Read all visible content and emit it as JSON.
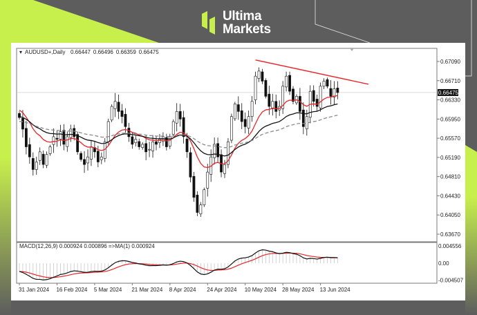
{
  "brand": {
    "line1": "Ultima",
    "line2": "Markets",
    "accent": "#c8f04c"
  },
  "chart_data": {
    "type": "candlestick",
    "symbol_header": "AUDUSD+,Daily",
    "ohlc_header": [
      "0.66447",
      "0.66496",
      "0.66359",
      "0.66475"
    ],
    "current_price_label": "0.66475",
    "y_ticks": [
      "0.67090",
      "0.66710",
      "0.66330",
      "0.65950",
      "0.65570",
      "0.65190",
      "0.64810",
      "0.64430",
      "0.64050",
      "0.63670"
    ],
    "ylim": [
      0.6345,
      0.674
    ],
    "x_tick_labels": [
      {
        "bar": 0,
        "label": "31 Jan 2024"
      },
      {
        "bar": 11,
        "label": "16 Feb 2024"
      },
      {
        "bar": 22,
        "label": "5 Mar 2024"
      },
      {
        "bar": 33,
        "label": "21 Mar 2024"
      },
      {
        "bar": 44,
        "label": "8 Apr 2024"
      },
      {
        "bar": 55,
        "label": "24 Apr 2024"
      },
      {
        "bar": 66,
        "label": "10 May 2024"
      },
      {
        "bar": 77,
        "label": "28 May 2024"
      },
      {
        "bar": 88,
        "label": "13 Jun 2024"
      }
    ],
    "closes": [
      0.6598,
      0.6575,
      0.654,
      0.652,
      0.6495,
      0.651,
      0.653,
      0.6505,
      0.6525,
      0.654,
      0.656,
      0.6555,
      0.657,
      0.6545,
      0.656,
      0.6575,
      0.656,
      0.653,
      0.6515,
      0.6505,
      0.652,
      0.654,
      0.653,
      0.651,
      0.652,
      0.655,
      0.659,
      0.662,
      0.663,
      0.661,
      0.66,
      0.658,
      0.656,
      0.6545,
      0.6555,
      0.654,
      0.6545,
      0.653,
      0.6535,
      0.655,
      0.6545,
      0.6555,
      0.656,
      0.654,
      0.656,
      0.659,
      0.661,
      0.6595,
      0.656,
      0.653,
      0.648,
      0.644,
      0.641,
      0.6425,
      0.6455,
      0.649,
      0.652,
      0.6545,
      0.652,
      0.649,
      0.6505,
      0.655,
      0.66,
      0.6625,
      0.661,
      0.659,
      0.658,
      0.66,
      0.663,
      0.668,
      0.669,
      0.667,
      0.664,
      0.662,
      0.663,
      0.661,
      0.662,
      0.666,
      0.668,
      0.665,
      0.663,
      0.664,
      0.661,
      0.658,
      0.66,
      0.665,
      0.663,
      0.662,
      0.666,
      0.667,
      0.666,
      0.664,
      0.6655,
      0.66475
    ],
    "trendline": {
      "color": "#e8262a",
      "from": [
        69,
        0.6712
      ],
      "to": [
        102,
        0.6664
      ]
    },
    "moving_averages": [
      {
        "color": "#e8262a",
        "style": "solid"
      },
      {
        "color": "#111111",
        "style": "solid"
      },
      {
        "color": "#8a8a8a",
        "style": "dashed"
      }
    ],
    "macd": {
      "header": "MACD(12,26,9) 0.000924 0.000896  =>MA(1) 0.000924",
      "y_ticks": [
        "0.004556",
        "0.00",
        "-0.004507"
      ],
      "ylim": [
        -0.004507,
        0.004556
      ],
      "colors": {
        "macd": "#111111",
        "signal": "#e8262a",
        "histogram": "#c8c8c8"
      }
    }
  }
}
